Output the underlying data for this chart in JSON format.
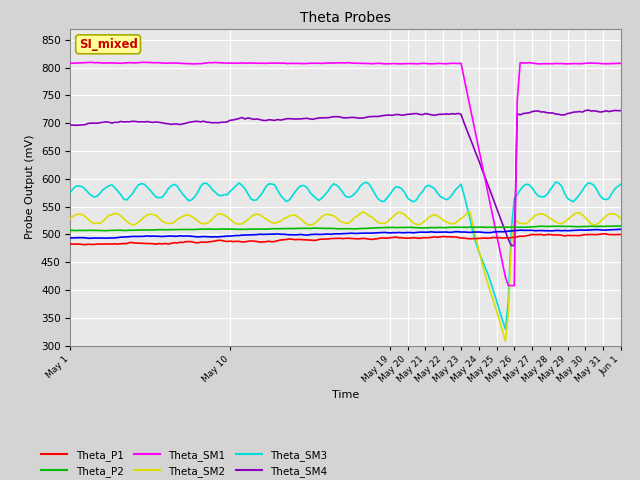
{
  "title": "Theta Probes",
  "xlabel": "Time",
  "ylabel": "Probe Output (mV)",
  "ylim": [
    300,
    870
  ],
  "yticks": [
    300,
    350,
    400,
    450,
    500,
    550,
    600,
    650,
    700,
    750,
    800,
    850
  ],
  "fig_facecolor": "#d4d4d4",
  "plot_bg_color": "#e8e8e8",
  "annotation_text": "SI_mixed",
  "annotation_color": "#cc0000",
  "annotation_bg": "#ffff99",
  "colors": {
    "Theta_P1": "#ff0000",
    "Theta_P2": "#00bb00",
    "Theta_P3": "#0000ff",
    "Theta_SM1": "#ff00ff",
    "Theta_SM2": "#dddd00",
    "Theta_SM3": "#00dddd",
    "Theta_SM4": "#8800bb"
  }
}
